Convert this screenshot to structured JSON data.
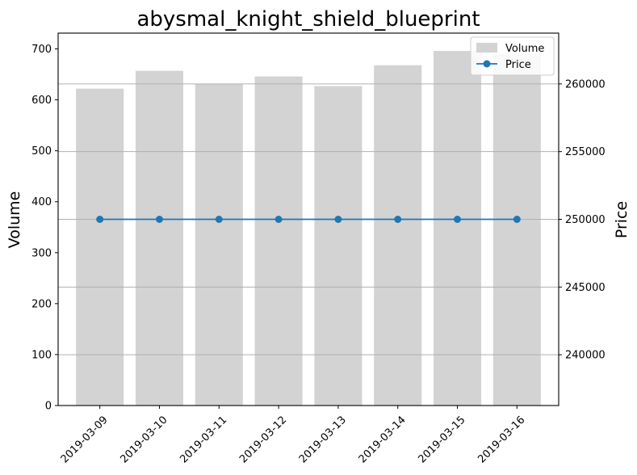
{
  "chart_data": {
    "type": "bar",
    "title": "abysmal_knight_shield_blueprint",
    "categories": [
      "2019-03-09",
      "2019-03-10",
      "2019-03-11",
      "2019-03-12",
      "2019-03-13",
      "2019-03-14",
      "2019-03-15",
      "2019-03-16"
    ],
    "series": [
      {
        "name": "Volume",
        "type": "bar",
        "axis": "left",
        "color": "#d3d3d3",
        "values": [
          622,
          657,
          631,
          646,
          627,
          668,
          696,
          690
        ]
      },
      {
        "name": "Price",
        "type": "line",
        "axis": "right",
        "color": "#1f77b4",
        "marker": "circle",
        "values": [
          250000,
          250000,
          250000,
          250000,
          250000,
          250000,
          250000,
          250000
        ]
      }
    ],
    "ylabel": "Volume",
    "ylim": [
      0,
      731
    ],
    "yticks": [
      0,
      100,
      200,
      300,
      400,
      500,
      600,
      700
    ],
    "y2label": "Price",
    "y2lim": [
      236250,
      263750
    ],
    "y2ticks": [
      240000,
      245000,
      250000,
      255000,
      260000
    ],
    "grid": "horizontal, right axis",
    "legend": "top-right"
  }
}
